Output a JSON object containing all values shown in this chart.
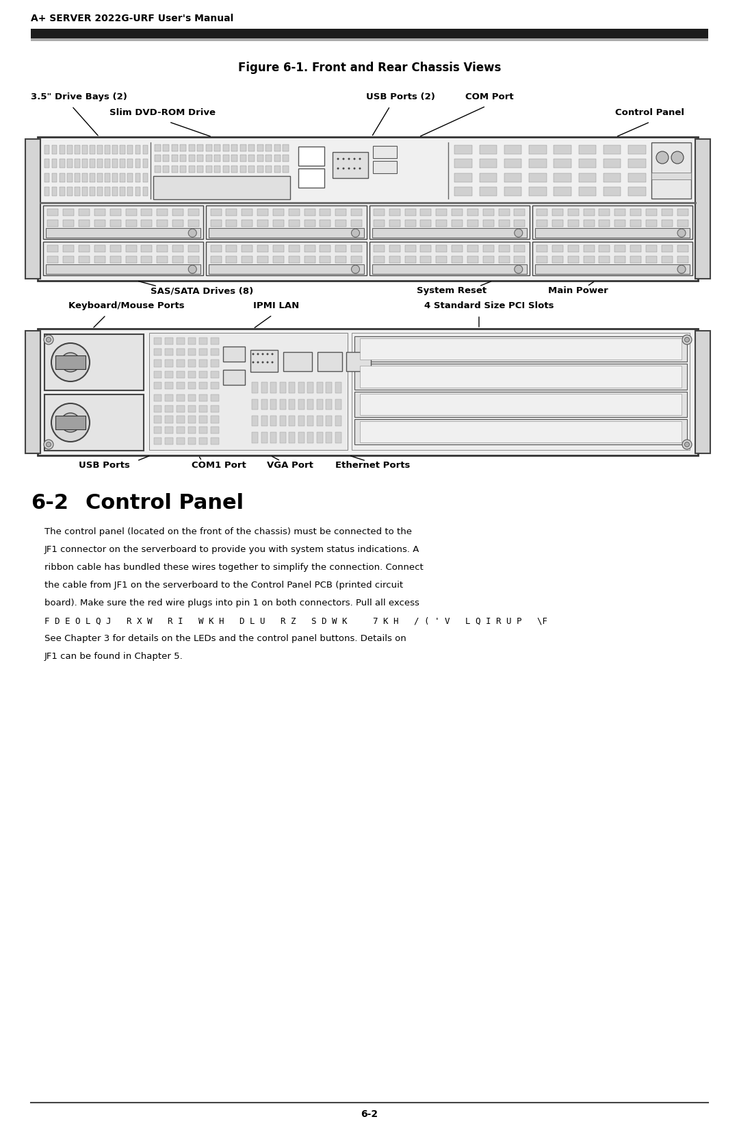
{
  "page_header": "A+ SERVER 2022G-URF User's Manual",
  "figure_title": "Figure 6-1. Front and Rear Chassis Views",
  "section_title": "6-2   Control Panel",
  "body_text_normal": [
    "The control panel (located on the front of the chassis) must be connected to the",
    "JF1 connector on the serverboard to provide you with system status indications. A",
    "ribbon cable has bundled these wires together to simplify the connection. Connect",
    "the cable from JF1 on the serverboard to the Control Panel PCB (printed circuit",
    "board). Make sure the red wire plugs into pin 1 on both connectors. Pull all excess"
  ],
  "body_text_mono": "F D E O L Q J   R X W   R I   W K H   D L U   R Z   S D W K     7 K H   / ( ' V   L Q I R U P   \\F",
  "body_text_after": [
    "See Chapter 3 for details on the LEDs and the control panel buttons. Details on",
    "JF1 can be found in Chapter 5."
  ],
  "page_number": "6-2",
  "bg_color": "#ffffff",
  "text_color": "#000000",
  "header_bar_dark": "#1c1c1c",
  "header_bar_light": "#888888",
  "chassis_face": "#f2f2f2",
  "chassis_border": "#333333",
  "vent_fill": "#cccccc",
  "vent_edge": "#888888"
}
